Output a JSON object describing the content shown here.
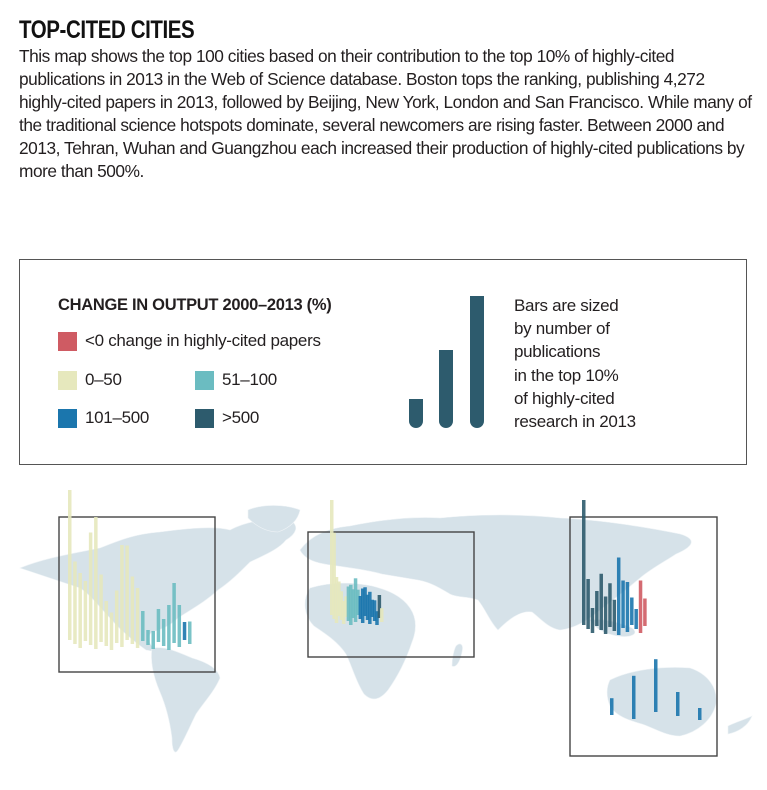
{
  "header": {
    "title": "TOP-CITED CITIES",
    "intro": "This map shows the top 100 cities based on their contribution to the top 10% of highly-cited publications in 2013 in the Web of Science database. Boston tops the ranking, publishing 4,272 highly-cited papers in 2013, followed by Beijing, New York, London and San Francisco. While many of the traditional science hotspots dominate, several newcomers are rising faster. Between 2000 and 2013, Tehran, Wuhan and Guangzhou each increased their production of highly-cited publications by more than 500%."
  },
  "legend": {
    "heading": "CHANGE IN OUTPUT 2000–2013 (%)",
    "items": [
      {
        "label": "<0 change in highly-cited papers",
        "color": "#cf5b63"
      },
      {
        "label": "0–50",
        "color": "#e6e8bd"
      },
      {
        "label": "51–100",
        "color": "#6bbcc1"
      },
      {
        "label": "101–500",
        "color": "#1b76ad"
      },
      {
        "label": ">500",
        "color": "#2d5b6d"
      }
    ],
    "size_note": "Bars are sized\nby number of\npublications\nin the top 10%\nof highly-cited\nresearch in 2013",
    "size_example_relative": [
      0.22,
      0.59,
      1.0
    ]
  },
  "map": {
    "land_color": "#d6e2e9",
    "regions": [
      {
        "name": "north-america",
        "bars": [
          {
            "c": 1,
            "h": 1.0
          },
          {
            "c": 1,
            "h": 0.55
          },
          {
            "c": 1,
            "h": 0.5
          },
          {
            "c": 1,
            "h": 0.4
          },
          {
            "c": 1,
            "h": 0.75
          },
          {
            "c": 1,
            "h": 0.88
          },
          {
            "c": 1,
            "h": 0.45
          },
          {
            "c": 1,
            "h": 0.3
          },
          {
            "c": 1,
            "h": 0.25
          },
          {
            "c": 1,
            "h": 0.35
          },
          {
            "c": 1,
            "h": 0.68
          },
          {
            "c": 1,
            "h": 0.63
          },
          {
            "c": 1,
            "h": 0.45
          },
          {
            "c": 1,
            "h": 0.4
          },
          {
            "c": 2,
            "h": 0.2
          },
          {
            "c": 2,
            "h": 0.1
          },
          {
            "c": 2,
            "h": 0.12
          },
          {
            "c": 2,
            "h": 0.22
          },
          {
            "c": 2,
            "h": 0.18
          },
          {
            "c": 2,
            "h": 0.3
          },
          {
            "c": 2,
            "h": 0.4
          },
          {
            "c": 2,
            "h": 0.28
          },
          {
            "c": 3,
            "h": 0.12
          },
          {
            "c": 2,
            "h": 0.15
          }
        ]
      },
      {
        "name": "europe",
        "bars": [
          {
            "c": 1,
            "h": 1.0
          },
          {
            "c": 1,
            "h": 0.75
          },
          {
            "c": 1,
            "h": 0.4
          },
          {
            "c": 1,
            "h": 0.3
          },
          {
            "c": 1,
            "h": 0.25
          },
          {
            "c": 1,
            "h": 0.2
          },
          {
            "c": 1,
            "h": 0.18
          },
          {
            "c": 2,
            "h": 0.3
          },
          {
            "c": 2,
            "h": 0.35
          },
          {
            "c": 2,
            "h": 0.25
          },
          {
            "c": 2,
            "h": 0.38
          },
          {
            "c": 2,
            "h": 0.22
          },
          {
            "c": 3,
            "h": 0.2
          },
          {
            "c": 3,
            "h": 0.3
          },
          {
            "c": 3,
            "h": 0.25
          },
          {
            "c": 3,
            "h": 0.22
          },
          {
            "c": 3,
            "h": 0.28
          },
          {
            "c": 3,
            "h": 0.15
          },
          {
            "c": 3,
            "h": 0.18
          },
          {
            "c": 3,
            "h": 0.12
          },
          {
            "c": 4,
            "h": 0.2
          },
          {
            "c": 1,
            "h": 0.12
          }
        ]
      },
      {
        "name": "asia-pacific",
        "bars": [
          {
            "c": 4,
            "h": 1.0
          },
          {
            "c": 4,
            "h": 0.4
          },
          {
            "c": 4,
            "h": 0.2
          },
          {
            "c": 4,
            "h": 0.28
          },
          {
            "c": 4,
            "h": 0.45
          },
          {
            "c": 4,
            "h": 0.3
          },
          {
            "c": 4,
            "h": 0.35
          },
          {
            "c": 4,
            "h": 0.25
          },
          {
            "c": 3,
            "h": 0.62
          },
          {
            "c": 3,
            "h": 0.38
          },
          {
            "c": 3,
            "h": 0.4
          },
          {
            "c": 3,
            "h": 0.22
          },
          {
            "c": 3,
            "h": 0.16
          },
          {
            "c": 0,
            "h": 0.42
          },
          {
            "c": 0,
            "h": 0.22
          },
          {
            "c": 3,
            "h": 0.14
          },
          {
            "c": 3,
            "h": 0.36
          },
          {
            "c": 3,
            "h": 0.44
          },
          {
            "c": 3,
            "h": 0.2
          },
          {
            "c": 3,
            "h": 0.1
          }
        ]
      }
    ]
  }
}
